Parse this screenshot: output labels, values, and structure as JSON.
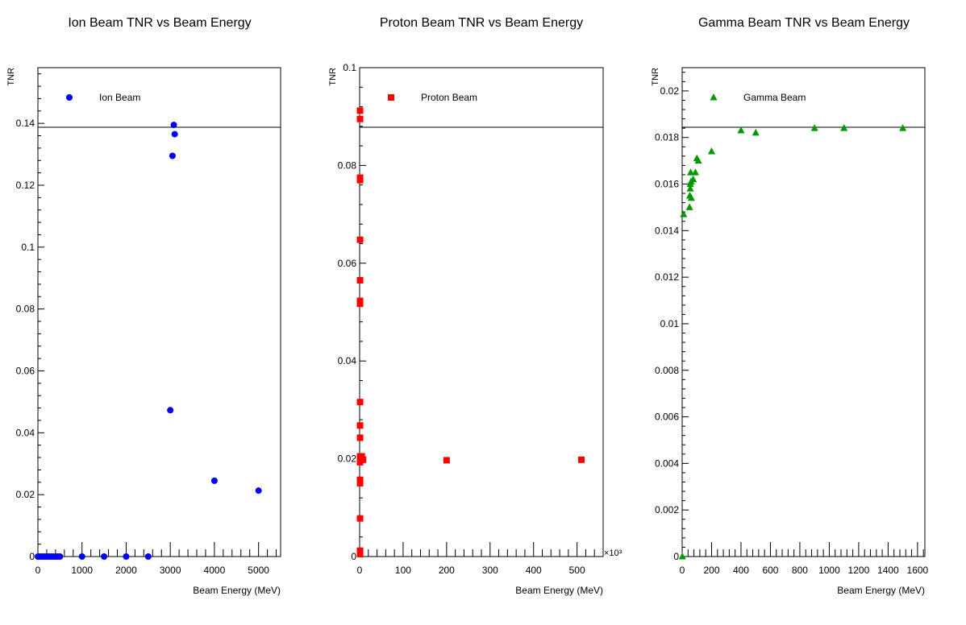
{
  "chart_data": [
    {
      "type": "scatter",
      "title": "Ion Beam TNR vs Beam Energy",
      "xlabel": "Beam Energy (MeV)",
      "ylabel": "TNR",
      "xlim": [
        0,
        5500
      ],
      "ylim": [
        0,
        0.158
      ],
      "xticks": [
        0,
        1000,
        2000,
        3000,
        4000,
        5000
      ],
      "xtick_labels": [
        "0",
        "1000",
        "2000",
        "3000",
        "4000",
        "5000"
      ],
      "yticks": [
        0,
        0.02,
        0.04,
        0.06,
        0.08,
        0.1,
        0.12,
        0.14
      ],
      "ytick_labels": [
        "0",
        "0.02",
        "0.04",
        "0.06",
        "0.08",
        "0.1",
        "0.12",
        "0.14"
      ],
      "grid": false,
      "legend_position": "top-left",
      "series": [
        {
          "name": "Ion Beam",
          "color": "#0000ff",
          "marker": "circle",
          "points": [
            [
              0,
              0
            ],
            [
              50,
              0
            ],
            [
              100,
              0
            ],
            [
              150,
              0
            ],
            [
              200,
              0
            ],
            [
              250,
              0
            ],
            [
              300,
              0
            ],
            [
              350,
              0
            ],
            [
              400,
              0
            ],
            [
              450,
              0
            ],
            [
              500,
              0
            ],
            [
              1000,
              0
            ],
            [
              1500,
              0
            ],
            [
              2000,
              0
            ],
            [
              2500,
              0
            ],
            [
              3000,
              0.0473
            ],
            [
              3050,
              0.1295
            ],
            [
              3080,
              0.1395
            ],
            [
              3100,
              0.1365
            ],
            [
              4000,
              0.0245
            ],
            [
              5000,
              0.0213
            ]
          ]
        }
      ]
    },
    {
      "type": "scatter",
      "title": "Proton Beam TNR vs Beam Energy",
      "xlabel": "Beam Energy (MeV)",
      "ylabel": "TNR",
      "x_multiplier_label": "×10³",
      "xlim": [
        0,
        560
      ],
      "ylim": [
        0,
        0.1
      ],
      "xticks": [
        0,
        100,
        200,
        300,
        400,
        500
      ],
      "xtick_labels": [
        "0",
        "100",
        "200",
        "300",
        "400",
        "500"
      ],
      "yticks": [
        0,
        0.02,
        0.04,
        0.06,
        0.08,
        0.1
      ],
      "ytick_labels": [
        "0",
        "0.02",
        "0.04",
        "0.06",
        "0.08",
        "0.1"
      ],
      "grid": false,
      "legend_position": "top-left",
      "series": [
        {
          "name": "Proton Beam",
          "color": "#ff0000",
          "marker": "square",
          "points": [
            [
              1,
              0.0912
            ],
            [
              1,
              0.0895
            ],
            [
              1,
              0.0775
            ],
            [
              1,
              0.077
            ],
            [
              1,
              0.0648
            ],
            [
              1,
              0.0565
            ],
            [
              1,
              0.0523
            ],
            [
              1,
              0.0517
            ],
            [
              1,
              0.0316
            ],
            [
              1,
              0.0268
            ],
            [
              1,
              0.0243
            ],
            [
              1,
              0.0205
            ],
            [
              1,
              0.02
            ],
            [
              1,
              0.0193
            ],
            [
              1,
              0.0157
            ],
            [
              1,
              0.015
            ],
            [
              1,
              0.0078
            ],
            [
              1,
              0.0012
            ],
            [
              1,
              0.0005
            ],
            [
              5,
              0.0205
            ],
            [
              8,
              0.0198
            ],
            [
              200,
              0.0197
            ],
            [
              510,
              0.0198
            ]
          ]
        }
      ]
    },
    {
      "type": "scatter",
      "title": "Gamma Beam TNR vs Beam Energy",
      "xlabel": "Beam Energy (MeV)",
      "ylabel": "TNR",
      "xlim": [
        0,
        1650
      ],
      "ylim": [
        0,
        0.021
      ],
      "xticks": [
        0,
        200,
        400,
        600,
        800,
        1000,
        1200,
        1400,
        1600
      ],
      "xtick_labels": [
        "0",
        "200",
        "400",
        "600",
        "800",
        "1000",
        "1200",
        "1400",
        "1600"
      ],
      "yticks": [
        0,
        0.002,
        0.004,
        0.006,
        0.008,
        0.01,
        0.012,
        0.014,
        0.016,
        0.018,
        0.02
      ],
      "ytick_labels": [
        "0",
        "0.002",
        "0.004",
        "0.006",
        "0.008",
        "0.01",
        "0.012",
        "0.014",
        "0.016",
        "0.018",
        "0.02"
      ],
      "grid": false,
      "legend_position": "top-left",
      "series": [
        {
          "name": "Gamma Beam",
          "color": "#009900",
          "marker": "triangle",
          "points": [
            [
              1,
              0
            ],
            [
              10,
              0.0147
            ],
            [
              50,
              0.015
            ],
            [
              52,
              0.0155
            ],
            [
              55,
              0.016
            ],
            [
              55,
              0.0158
            ],
            [
              58,
              0.0165
            ],
            [
              60,
              0.0161
            ],
            [
              62,
              0.0154
            ],
            [
              75,
              0.0162
            ],
            [
              90,
              0.0165
            ],
            [
              100,
              0.0171
            ],
            [
              110,
              0.017
            ],
            [
              200,
              0.0174
            ],
            [
              400,
              0.0183
            ],
            [
              500,
              0.0182
            ],
            [
              900,
              0.0184
            ],
            [
              1100,
              0.0184
            ],
            [
              1500,
              0.0184
            ]
          ]
        }
      ]
    }
  ]
}
